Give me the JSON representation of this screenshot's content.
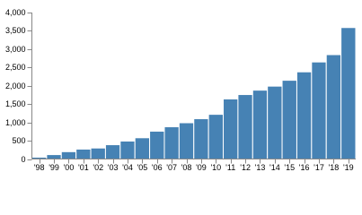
{
  "chart_data": {
    "type": "bar",
    "categories": [
      "'98",
      "'99",
      "'00",
      "'01",
      "'02",
      "'03",
      "'04",
      "'05",
      "'06",
      "'07",
      "'08",
      "'09",
      "'10",
      "'11",
      "'12",
      "'13",
      "'14",
      "'15",
      "'16",
      "'17",
      "'18",
      "'19"
    ],
    "values": [
      50,
      120,
      200,
      270,
      300,
      390,
      490,
      580,
      760,
      880,
      990,
      1100,
      1220,
      1640,
      1760,
      1880,
      1990,
      2150,
      2380,
      2650,
      2850,
      3590
    ],
    "color": "#4682b4",
    "ylim": [
      0,
      4000
    ],
    "yticks": [
      0,
      500,
      {
        "value": 1000,
        "label": "1,000"
      },
      {
        "value": 1500,
        "label": "1,500"
      },
      {
        "value": 2000,
        "label": "2,000"
      },
      {
        "value": 2500,
        "label": "2,500"
      },
      {
        "value": 3000,
        "label": "3,000"
      },
      {
        "value": 3500,
        "label": "3,500"
      },
      {
        "value": 4000,
        "label": "4,000"
      }
    ],
    "grid": false
  }
}
